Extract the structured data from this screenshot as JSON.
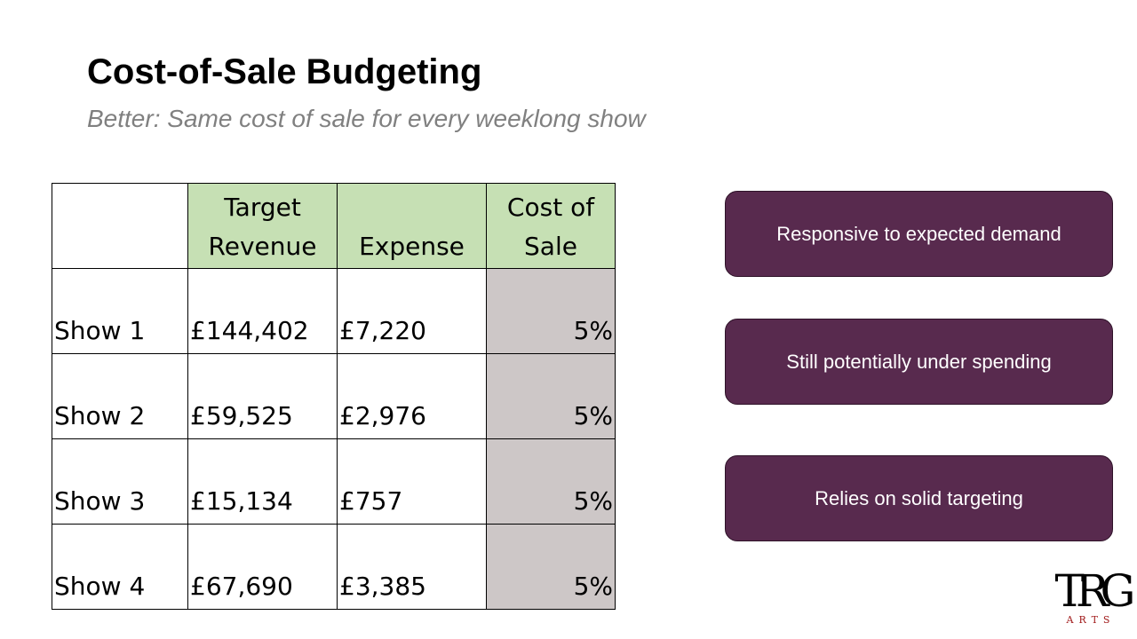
{
  "slide": {
    "title": "Cost-of-Sale Budgeting",
    "subtitle": "Better: Same cost of sale for every weeklong show"
  },
  "table": {
    "headers": [
      "",
      "Target Revenue",
      "Expense",
      "Cost of Sale"
    ],
    "rows": [
      [
        "Show 1",
        "£144,402",
        "£7,220",
        "5%"
      ],
      [
        "Show 2",
        "£59,525",
        "£2,976",
        "5%"
      ],
      [
        "Show 3",
        "£15,134",
        "£757",
        "5%"
      ],
      [
        "Show 4",
        "£67,690",
        "£3,385",
        "5%"
      ]
    ]
  },
  "points": [
    "Responsive to expected demand",
    "Still potentially under spending",
    "Relies on solid targeting"
  ],
  "logo": {
    "mark": "TRG",
    "sub": "ARTS"
  },
  "colors": {
    "header_fill": "#c6e0b4",
    "percent_fill": "#cdc7c7",
    "pill_fill": "#582a4e",
    "subtitle_text": "#808080",
    "logo_sub_text": "#a01919"
  }
}
